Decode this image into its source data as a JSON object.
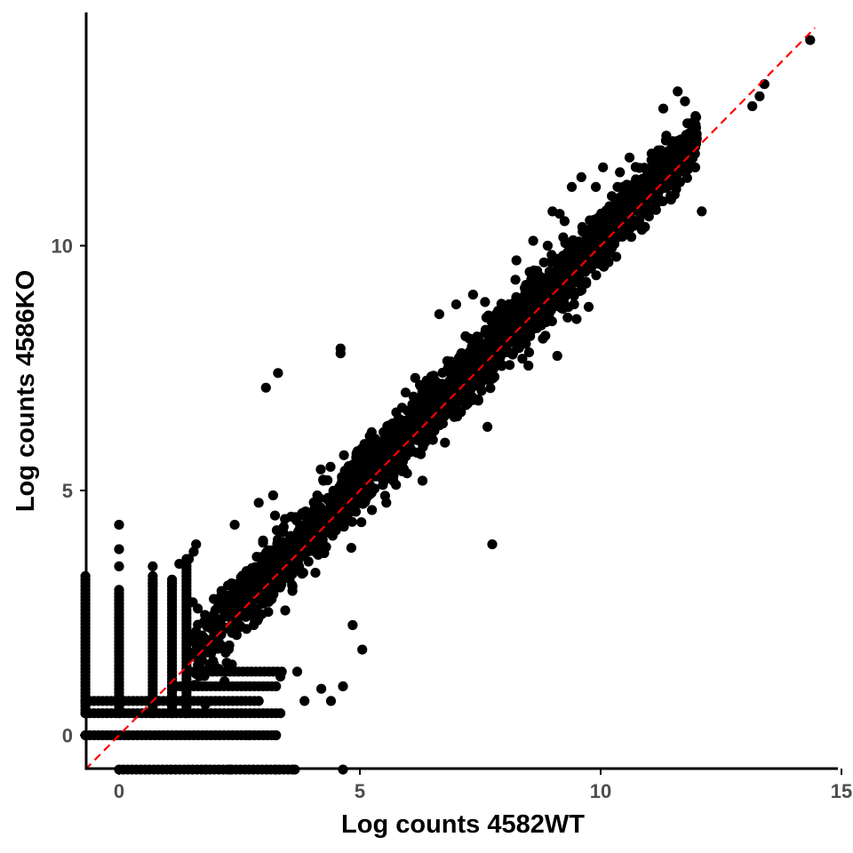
{
  "chart_data": {
    "type": "scatter",
    "title": "",
    "xlabel": "Log counts 4582WT",
    "ylabel": "Log counts 4586KO",
    "xlim": [
      -0.7,
      15
    ],
    "ylim": [
      -0.7,
      14.4
    ],
    "x_ticks": [
      0,
      5,
      10,
      15
    ],
    "y_ticks": [
      0,
      5,
      10
    ],
    "x_tick_labels": [
      "0",
      "5",
      "10",
      "15"
    ],
    "y_tick_labels": [
      "0",
      "5",
      "10"
    ],
    "grid": false,
    "legend": "none",
    "point_color": "#000000",
    "reference_line": {
      "style": "dashed",
      "color": "#ff0000",
      "slope": 1,
      "intercept": 0
    },
    "points": [
      [
        14.35,
        14.2
      ],
      [
        13.4,
        13.3
      ],
      [
        13.3,
        13.05
      ],
      [
        13.15,
        12.85
      ],
      [
        11.6,
        13.15
      ],
      [
        11.75,
        12.95
      ],
      [
        11.3,
        12.8
      ],
      [
        11.8,
        12.5
      ],
      [
        12.1,
        10.7
      ],
      [
        11.7,
        11.85
      ],
      [
        11.5,
        11.9
      ],
      [
        10.05,
        11.6
      ],
      [
        9.6,
        11.4
      ],
      [
        10.4,
        11.5
      ],
      [
        9.9,
        11.2
      ],
      [
        9.4,
        11.2
      ],
      [
        9.0,
        10.7
      ],
      [
        9.15,
        10.65
      ],
      [
        8.9,
        10.0
      ],
      [
        9.0,
        9.4
      ],
      [
        8.45,
        9.2
      ],
      [
        7.6,
        8.85
      ],
      [
        7.45,
        7.7
      ],
      [
        4.6,
        7.8
      ],
      [
        6.15,
        7.3
      ],
      [
        5.95,
        7.0
      ],
      [
        4.6,
        7.9
      ],
      [
        7.1,
        6.6
      ],
      [
        6.5,
        6.3
      ],
      [
        7.65,
        6.3
      ],
      [
        3.3,
        7.4
      ],
      [
        3.05,
        7.1
      ],
      [
        7.75,
        3.9
      ],
      [
        6.3,
        5.2
      ],
      [
        8.8,
        8.1
      ],
      [
        9.75,
        8.75
      ],
      [
        9.5,
        8.5
      ],
      [
        9.1,
        7.75
      ],
      [
        8.5,
        7.55
      ],
      [
        4.95,
        5.8
      ],
      [
        3.2,
        4.9
      ],
      [
        2.9,
        4.75
      ],
      [
        2.4,
        4.3
      ],
      [
        1.6,
        3.9
      ],
      [
        1.45,
        3.6
      ],
      [
        3.8,
        3.3
      ],
      [
        3.6,
        2.95
      ],
      [
        3.45,
        2.55
      ],
      [
        4.85,
        2.25
      ],
      [
        5.05,
        1.75
      ],
      [
        4.65,
        1.0
      ],
      [
        4.4,
        0.7
      ],
      [
        3.7,
        1.3
      ],
      [
        3.35,
        1.2
      ],
      [
        3.85,
        0.7
      ],
      [
        4.2,
        0.95
      ],
      [
        3.25,
        0.0
      ],
      [
        2.7,
        0.0
      ],
      [
        4.65,
        -0.7
      ],
      [
        3.65,
        -0.7
      ],
      [
        3.25,
        -0.7
      ],
      [
        2.3,
        -0.7
      ],
      [
        1.8,
        -0.7
      ],
      [
        0.0,
        4.3
      ],
      [
        0.0,
        3.8
      ],
      [
        0.0,
        3.45
      ],
      [
        0.7,
        3.45
      ],
      [
        0.7,
        3.1
      ],
      [
        1.1,
        3.1
      ],
      [
        1.25,
        3.5
      ],
      [
        1.55,
        3.75
      ],
      [
        5.55,
        4.75
      ],
      [
        5.25,
        4.6
      ],
      [
        6.65,
        8.6
      ],
      [
        7.0,
        8.8
      ],
      [
        7.35,
        9.0
      ],
      [
        8.25,
        9.7
      ],
      [
        8.6,
        10.1
      ],
      [
        9.25,
        10.5
      ],
      [
        10.6,
        11.8
      ],
      [
        11.25,
        11.95
      ],
      [
        11.1,
        11.7
      ],
      [
        10.85,
        11.15
      ],
      [
        10.35,
        11.2
      ]
    ],
    "columns": [
      {
        "x": -0.7,
        "y_range": [
          0.45,
          3.3
        ]
      },
      {
        "x": 0.0,
        "y_range": [
          0.45,
          3.0
        ]
      },
      {
        "x": 0.7,
        "y_range": [
          0.45,
          3.3
        ]
      },
      {
        "x": 1.1,
        "y_range": [
          0.45,
          3.2
        ]
      },
      {
        "x": 1.4,
        "y_range": [
          0.45,
          3.6
        ]
      }
    ],
    "rows": [
      {
        "y": 0.0,
        "x_range": [
          -0.7,
          3.3
        ]
      },
      {
        "y": 0.45,
        "x_range": [
          -0.7,
          3.4
        ]
      },
      {
        "y": 0.7,
        "x_range": [
          -0.7,
          2.9
        ]
      },
      {
        "y": 1.0,
        "x_range": [
          1.1,
          3.3
        ]
      },
      {
        "y": 1.3,
        "x_range": [
          1.4,
          3.4
        ]
      },
      {
        "y": -0.7,
        "x_range": [
          0.0,
          3.6
        ]
      }
    ],
    "point_cloud": {
      "x_range": [
        1.5,
        12.0
      ],
      "center_offset": 0.15,
      "spread": 0.32,
      "count": 2600
    }
  }
}
